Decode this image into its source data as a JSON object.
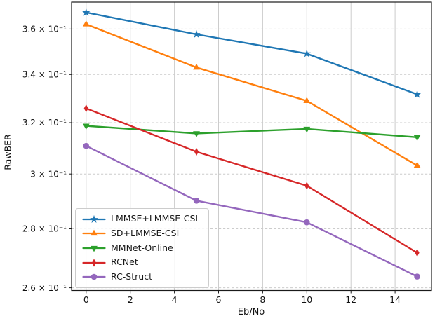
{
  "chart_data": {
    "type": "line",
    "title": "",
    "xlabel": "Eb/No",
    "ylabel": "RawBER",
    "x_scale": "linear",
    "y_scale": "log",
    "xlim": [
      -0.66,
      15.65
    ],
    "ylim": [
      0.2591,
      0.3724
    ],
    "x": [
      0,
      5,
      10,
      15
    ],
    "x_ticks": [
      0,
      2,
      4,
      6,
      8,
      10,
      12,
      14
    ],
    "y_ticks": [
      0.36,
      0.34,
      0.32,
      0.3,
      0.28,
      0.26
    ],
    "y_tick_labels": [
      "3.6 × 10⁻¹",
      "3.4 × 10⁻¹",
      "3.2 × 10⁻¹",
      "3 × 10⁻¹",
      "2.8 × 10⁻¹",
      "2.6 × 10⁻¹"
    ],
    "grid": {
      "vertical_style": "solid",
      "horizontal_style": "dashed",
      "color": "#cccccc"
    },
    "legend_position": "lower-left",
    "series": [
      {
        "name": "LMMSE+LMMSE-CSI",
        "color": "#1f77b4",
        "marker": "star",
        "values": [
          0.3676,
          0.3576,
          0.349,
          0.3316
        ]
      },
      {
        "name": "SD+LMMSE-CSI",
        "color": "#ff7f0e",
        "marker": "triangle-up",
        "values": [
          0.3622,
          0.343,
          0.3289,
          0.3032
        ]
      },
      {
        "name": "MMNet-Online",
        "color": "#2ca02c",
        "marker": "triangle-down",
        "values": [
          0.3187,
          0.3157,
          0.3175,
          0.3142
        ]
      },
      {
        "name": "RCNet",
        "color": "#d62728",
        "marker": "diamond",
        "values": [
          0.3258,
          0.3085,
          0.2956,
          0.2717
        ]
      },
      {
        "name": "RC-Struct",
        "color": "#9467bd",
        "marker": "circle",
        "values": [
          0.3108,
          0.2901,
          0.2823,
          0.2637
        ]
      }
    ]
  }
}
